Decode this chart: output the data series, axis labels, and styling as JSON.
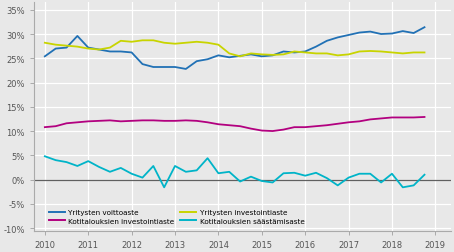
{
  "xlim": [
    2009.75,
    2019.35
  ],
  "ylim": [
    -0.105,
    0.365
  ],
  "yticks": [
    -0.1,
    -0.05,
    0.0,
    0.05,
    0.1,
    0.15,
    0.2,
    0.25,
    0.3,
    0.35
  ],
  "xticks": [
    2010,
    2011,
    2012,
    2013,
    2014,
    2015,
    2016,
    2017,
    2018,
    2019
  ],
  "colors": {
    "voittoaste": "#2171b5",
    "investointiaste_yritys": "#c8d400",
    "investointiaste_kotital": "#b2007f",
    "saastamisaste": "#00b4c8"
  },
  "legend": [
    {
      "label": "Yritysten voittoaste",
      "color": "#2171b5"
    },
    {
      "label": "Kotitalouksien investointiaste",
      "color": "#b2007f"
    },
    {
      "label": "Yritysten investointiaste",
      "color": "#c8d400"
    },
    {
      "label": "Kotitalouksien säästämisaste",
      "color": "#00b4c8"
    }
  ],
  "series": {
    "voittoaste": [
      0.254,
      0.27,
      0.272,
      0.296,
      0.272,
      0.268,
      0.264,
      0.264,
      0.262,
      0.238,
      0.232,
      0.232,
      0.232,
      0.228,
      0.244,
      0.248,
      0.256,
      0.252,
      0.255,
      0.258,
      0.254,
      0.256,
      0.264,
      0.262,
      0.264,
      0.274,
      0.286,
      0.293,
      0.298,
      0.303,
      0.305,
      0.3,
      0.301,
      0.306,
      0.302,
      0.314
    ],
    "investointiaste_yritys": [
      0.282,
      0.278,
      0.276,
      0.274,
      0.27,
      0.268,
      0.272,
      0.286,
      0.284,
      0.287,
      0.287,
      0.282,
      0.28,
      0.282,
      0.284,
      0.282,
      0.278,
      0.26,
      0.254,
      0.26,
      0.258,
      0.257,
      0.258,
      0.264,
      0.262,
      0.26,
      0.26,
      0.256,
      0.258,
      0.264,
      0.265,
      0.264,
      0.262,
      0.26,
      0.262,
      0.262
    ],
    "investointiaste_kotital": [
      0.108,
      0.11,
      0.116,
      0.118,
      0.12,
      0.121,
      0.122,
      0.12,
      0.121,
      0.122,
      0.122,
      0.121,
      0.121,
      0.122,
      0.121,
      0.118,
      0.114,
      0.112,
      0.11,
      0.105,
      0.101,
      0.1,
      0.103,
      0.108,
      0.108,
      0.11,
      0.112,
      0.115,
      0.118,
      0.12,
      0.124,
      0.126,
      0.128,
      0.128,
      0.128,
      0.129
    ],
    "saastamisaste": [
      0.048,
      0.04,
      0.036,
      0.028,
      0.038,
      0.026,
      0.016,
      0.024,
      0.012,
      0.004,
      0.028,
      -0.016,
      0.028,
      0.016,
      0.019,
      0.044,
      0.013,
      0.016,
      -0.004,
      0.006,
      -0.003,
      -0.006,
      0.013,
      0.014,
      0.008,
      0.014,
      0.003,
      -0.012,
      0.004,
      0.012,
      0.012,
      -0.006,
      0.012,
      -0.016,
      -0.012,
      0.01
    ]
  },
  "n_points": 36,
  "start_year": 2010,
  "background_color": "#e8e8e8",
  "plot_bg_color": "#e8e8e8",
  "grid_color": "#ffffff",
  "zero_line_color": "#606060",
  "spine_color": "#aaaaaa",
  "tick_color": "#555555",
  "linewidth": 1.3
}
